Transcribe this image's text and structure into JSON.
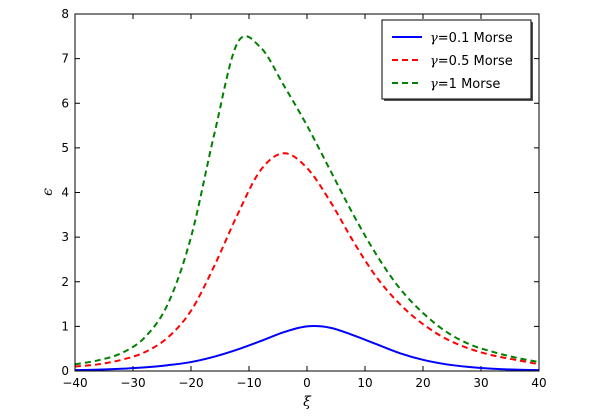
{
  "chart_data": {
    "type": "line",
    "title": "",
    "xlabel": "ξ",
    "ylabel": "ϵ",
    "xlim": [
      -40,
      40
    ],
    "ylim": [
      0,
      8
    ],
    "xticks": [
      -40,
      -30,
      -20,
      -10,
      0,
      10,
      20,
      30,
      40
    ],
    "yticks": [
      0,
      1,
      2,
      3,
      4,
      5,
      6,
      7,
      8
    ],
    "x_tick_labels": [
      "−40",
      "−30",
      "−20",
      "−10",
      "0",
      "10",
      "20",
      "30",
      "40"
    ],
    "y_tick_labels": [
      "0",
      "1",
      "2",
      "3",
      "4",
      "5",
      "6",
      "7",
      "8"
    ],
    "grid": false,
    "legend_position": "top-right",
    "x": [
      -40,
      -36,
      -32,
      -28,
      -24,
      -20,
      -16,
      -12,
      -8,
      -4,
      0,
      4,
      8,
      12,
      16,
      20,
      24,
      28,
      32,
      36,
      40
    ],
    "series": [
      {
        "name": "γ=0.1 Morse",
        "symbol": "γ",
        "label": "=0.1 Morse",
        "color": "#0000ff",
        "style": "solid",
        "values": [
          0.02,
          0.03,
          0.05,
          0.08,
          0.13,
          0.2,
          0.32,
          0.48,
          0.67,
          0.87,
          1.0,
          0.97,
          0.8,
          0.6,
          0.4,
          0.25,
          0.15,
          0.09,
          0.05,
          0.03,
          0.02
        ]
      },
      {
        "name": "γ=0.5 Morse",
        "symbol": "γ",
        "label": "=0.5 Morse",
        "color": "#ff0000",
        "style": "dashed",
        "values": [
          0.1,
          0.15,
          0.25,
          0.42,
          0.75,
          1.35,
          2.35,
          3.5,
          4.5,
          4.88,
          4.55,
          3.8,
          2.9,
          2.1,
          1.5,
          1.05,
          0.72,
          0.5,
          0.35,
          0.25,
          0.15
        ]
      },
      {
        "name": "γ=1 Morse",
        "symbol": "γ",
        "label": "=1 Morse",
        "color": "#008000",
        "style": "dashed",
        "values": [
          0.15,
          0.24,
          0.4,
          0.75,
          1.5,
          3.0,
          5.3,
          7.35,
          7.25,
          6.4,
          5.5,
          4.5,
          3.5,
          2.6,
          1.85,
          1.3,
          0.88,
          0.6,
          0.43,
          0.3,
          0.2
        ]
      }
    ]
  }
}
